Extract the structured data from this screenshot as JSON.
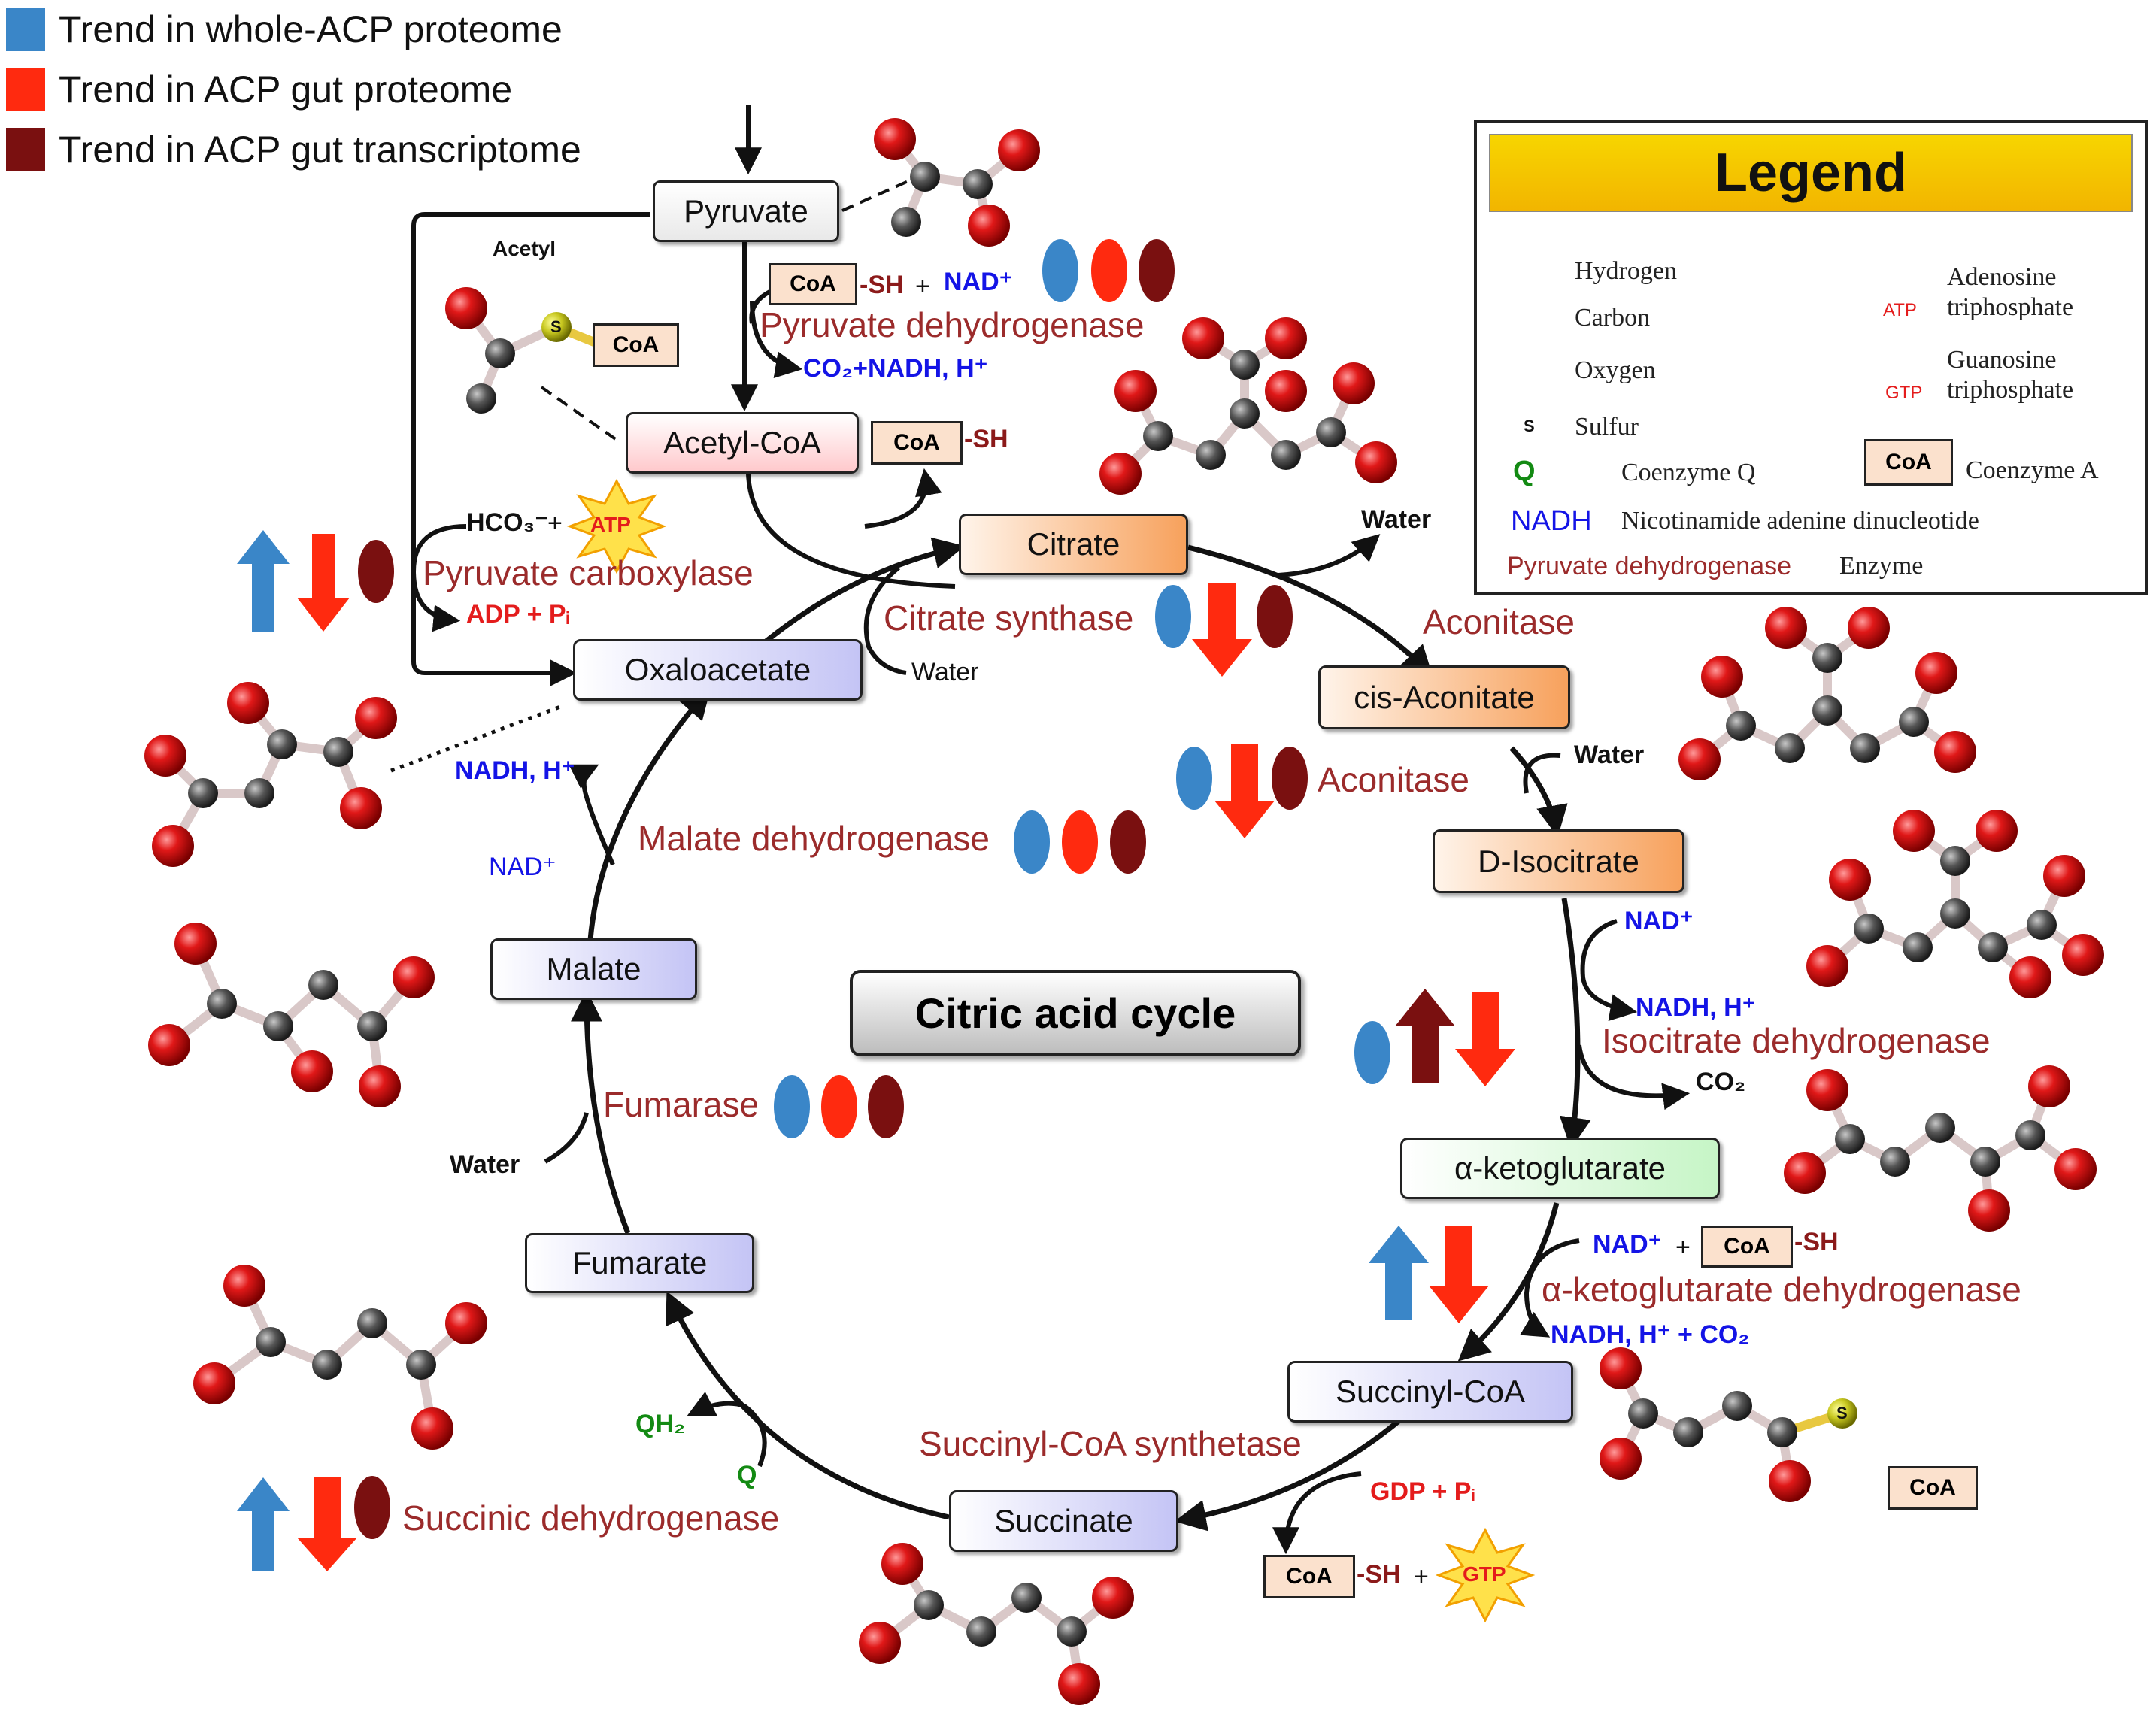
{
  "trend_legend": [
    {
      "label": "Trend in whole-ACP proteome",
      "color": "#3a86c8"
    },
    {
      "label": "Trend in ACP gut proteome",
      "color": "#ff2a0f"
    },
    {
      "label": "Trend in ACP gut transcriptome",
      "color": "#7a1010"
    }
  ],
  "center_title": "Citric acid cycle",
  "metabolites": {
    "pyruvate": "Pyruvate",
    "acetyl_coa": "Acetyl-CoA",
    "citrate": "Citrate",
    "cis_aconitate": "cis-Aconitate",
    "d_isocitrate": "D-Isocitrate",
    "a_ketoglutarate": "α-ketoglutarate",
    "succinyl_coa": "Succinyl-CoA",
    "succinate": "Succinate",
    "fumarate": "Fumarate",
    "malate": "Malate",
    "oxaloacetate": "Oxaloacetate"
  },
  "enzymes": {
    "pyruvate_dehydrogenase": "Pyruvate dehydrogenase",
    "pyruvate_carboxylase": "Pyruvate carboxylase",
    "citrate_synthase": "Citrate synthase",
    "aconitase_1": "Aconitase",
    "aconitase_2": "Aconitase",
    "isocitrate_dehydrogenase": "Isocitrate dehydrogenase",
    "akg_dehydrogenase": "α-ketoglutarate dehydrogenase",
    "succinyl_coa_synthetase": "Succinyl-CoA synthetase",
    "succinic_dehydrogenase": "Succinic dehydrogenase",
    "fumarase": "Fumarase",
    "malate_dehydrogenase": "Malate dehydrogenase"
  },
  "cofactors": {
    "acetyl": "Acetyl",
    "coa": "CoA",
    "sh": "-SH",
    "plus": "+",
    "nad_plus": "NAD⁺",
    "co2_nadh": "CO₂+NADH, H⁺",
    "hco3": "HCO₃⁻",
    "atp": "ATP",
    "gtp": "GTP",
    "adp_pi": "ADP + Pᵢ",
    "water": "Water",
    "nadh_h": "NADH, H⁺",
    "co2": "CO₂",
    "nadh_h_co2": "NADH, H⁺ + CO₂",
    "gdp_pi": "GDP + Pᵢ",
    "qh2": "QH₂",
    "q": "Q",
    "s": "S",
    "o": "O",
    "c": "C"
  },
  "legend": {
    "title": "Legend",
    "hydrogen": "Hydrogen",
    "carbon": "Carbon",
    "oxygen": "Oxygen",
    "sulfur": "Sulfur",
    "atp_desc": "Adenosine triphosphate",
    "gtp_desc": "Guanosine triphosphate",
    "q_symbol": "Q",
    "q_desc": "Coenzyme Q",
    "coa_symbol": "CoA",
    "coa_desc": "Coenzyme A",
    "nadh_symbol": "NADH",
    "nadh_desc": "Nicotinamide adenine dinucleotide",
    "enzyme_example": "Pyruvate dehydrogenase",
    "enzyme_desc": "Enzyme"
  },
  "colors": {
    "blue_trend": "#3a86c8",
    "red_trend": "#ff2a0f",
    "maroon_trend": "#7a1010",
    "enzyme_text": "#9b2b2b",
    "oxygen_atom": "#e01818",
    "carbon_atom": "#555555"
  }
}
